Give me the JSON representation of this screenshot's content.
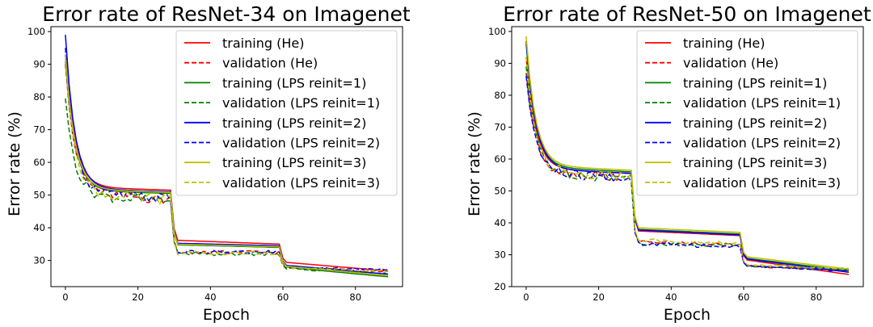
{
  "chart_data": [
    {
      "type": "line",
      "title": "Error rate of ResNet-34 on Imagenet",
      "xlabel": "Epoch",
      "ylabel": "Error rate (%)",
      "xlim": [
        -4,
        93
      ],
      "ylim": [
        22,
        101.5
      ],
      "xticks": [
        0,
        20,
        40,
        60,
        80
      ],
      "yticks": [
        30,
        40,
        50,
        60,
        70,
        80,
        90,
        100
      ],
      "grid": false,
      "legend_position": "top-right",
      "epochs": 90,
      "series": [
        {
          "name": "training (He)",
          "color": "#ff0000",
          "dash": "solid",
          "start": 93,
          "plateau1": [
            52.5,
            51.5
          ],
          "plateau2": [
            36.2,
            35.0
          ],
          "plateau3": [
            29.5,
            26.8
          ]
        },
        {
          "name": "validation (He)",
          "color": "#ff0000",
          "dash": "dashed",
          "start": 90,
          "plateau1": [
            51.0,
            48.5
          ],
          "plateau2": [
            32.5,
            32.5
          ],
          "plateau3": [
            28.0,
            26.5
          ]
        },
        {
          "name": "training (LPS reinit=1)",
          "color": "#008000",
          "dash": "solid",
          "start": 91,
          "plateau1": [
            51.5,
            50.5
          ],
          "plateau2": [
            34.8,
            34.0
          ],
          "plateau3": [
            28.0,
            25.0
          ]
        },
        {
          "name": "validation (LPS reinit=1)",
          "color": "#008000",
          "dash": "dashed",
          "start": 79.5,
          "plateau1": [
            50.0,
            48.0
          ],
          "plateau2": [
            32.0,
            32.0
          ],
          "plateau3": [
            27.5,
            26.0
          ]
        },
        {
          "name": "training (LPS reinit=2)",
          "color": "#0000ff",
          "dash": "solid",
          "start": 99,
          "plateau1": [
            52.0,
            51.0
          ],
          "plateau2": [
            35.3,
            34.5
          ],
          "plateau3": [
            28.6,
            25.8
          ]
        },
        {
          "name": "validation (LPS reinit=2)",
          "color": "#0000ff",
          "dash": "dashed",
          "start": 95,
          "plateau1": [
            50.5,
            49.0
          ],
          "plateau2": [
            32.5,
            32.5
          ],
          "plateau3": [
            28.0,
            27.2
          ]
        },
        {
          "name": "training (LPS reinit=3)",
          "color": "#bfbf00",
          "dash": "solid",
          "start": 92,
          "plateau1": [
            51.8,
            50.8
          ],
          "plateau2": [
            35.0,
            34.2
          ],
          "plateau3": [
            28.3,
            25.4
          ]
        },
        {
          "name": "validation (LPS reinit=3)",
          "color": "#bfbf00",
          "dash": "dashed",
          "start": 93,
          "plateau1": [
            50.3,
            48.5
          ],
          "plateau2": [
            32.3,
            32.3
          ],
          "plateau3": [
            27.8,
            26.8
          ]
        }
      ]
    },
    {
      "type": "line",
      "title": "Error rate of ResNet-50 on Imagenet",
      "xlabel": "Epoch",
      "ylabel": "Error rate (%)",
      "xlim": [
        -4,
        93
      ],
      "ylim": [
        20,
        101.5
      ],
      "xticks": [
        0,
        20,
        40,
        60,
        80
      ],
      "yticks": [
        20,
        30,
        40,
        50,
        60,
        70,
        80,
        90,
        100
      ],
      "grid": false,
      "legend_position": "top-right",
      "epochs": 90,
      "series": [
        {
          "name": "training (He)",
          "color": "#ff0000",
          "dash": "solid",
          "start": 92,
          "plateau1": [
            57.0,
            55.5
          ],
          "plateau2": [
            37.5,
            36.0
          ],
          "plateau3": [
            28.5,
            23.8
          ]
        },
        {
          "name": "validation (He)",
          "color": "#ff0000",
          "dash": "dashed",
          "start": 87,
          "plateau1": [
            56.0,
            54.5
          ],
          "plateau2": [
            34.0,
            33.0
          ],
          "plateau3": [
            26.5,
            25.0
          ]
        },
        {
          "name": "training (LPS reinit=1)",
          "color": "#008000",
          "dash": "solid",
          "start": 96,
          "plateau1": [
            57.5,
            56.0
          ],
          "plateau2": [
            38.0,
            36.5
          ],
          "plateau3": [
            29.0,
            25.0
          ]
        },
        {
          "name": "validation (LPS reinit=1)",
          "color": "#008000",
          "dash": "dashed",
          "start": 89,
          "plateau1": [
            56.0,
            54.0
          ],
          "plateau2": [
            33.5,
            33.0
          ],
          "plateau3": [
            26.5,
            25.2
          ]
        },
        {
          "name": "training (LPS reinit=2)",
          "color": "#0000ff",
          "dash": "solid",
          "start": 97,
          "plateau1": [
            57.0,
            55.5
          ],
          "plateau2": [
            37.8,
            36.2
          ],
          "plateau3": [
            28.8,
            24.5
          ]
        },
        {
          "name": "validation (LPS reinit=2)",
          "color": "#0000ff",
          "dash": "dashed",
          "start": 86,
          "plateau1": [
            55.5,
            54.0
          ],
          "plateau2": [
            33.5,
            32.5
          ],
          "plateau3": [
            26.5,
            24.8
          ]
        },
        {
          "name": "training (LPS reinit=3)",
          "color": "#bfbf00",
          "dash": "solid",
          "start": 98.5,
          "plateau1": [
            58.0,
            56.5
          ],
          "plateau2": [
            38.5,
            37.0
          ],
          "plateau3": [
            29.5,
            25.5
          ]
        },
        {
          "name": "validation (LPS reinit=3)",
          "color": "#bfbf00",
          "dash": "dashed",
          "start": 92,
          "plateau1": [
            56.0,
            54.5
          ],
          "plateau2": [
            34.5,
            33.5
          ],
          "plateau3": [
            27.0,
            25.6
          ]
        }
      ]
    }
  ]
}
